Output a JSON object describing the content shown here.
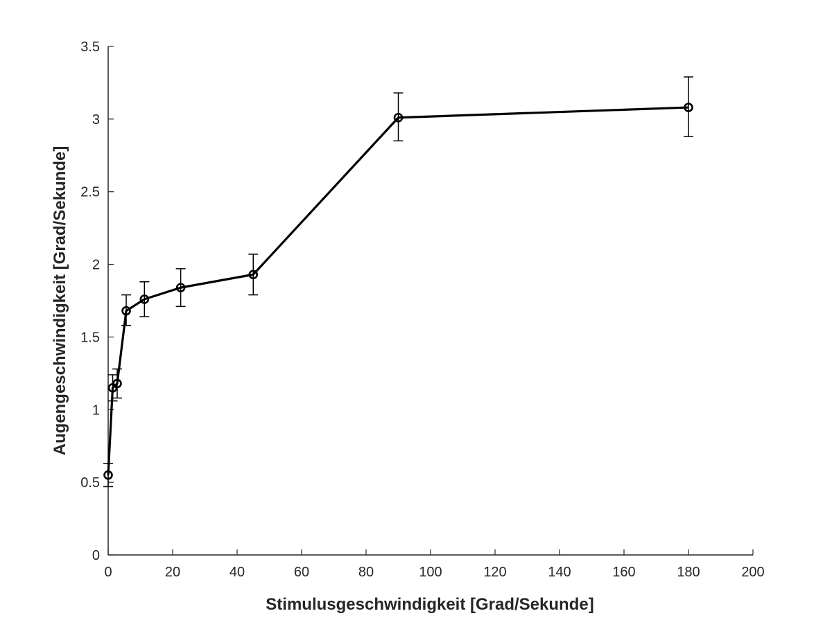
{
  "chart_data": {
    "type": "line",
    "title": "",
    "xlabel": "Stimulusgeschwindigkeit [Grad/Sekunde]",
    "ylabel": "Augengeschwindigkeit [Grad/Sekunde]",
    "xlim": [
      0,
      200
    ],
    "ylim": [
      0,
      3.5
    ],
    "xticks": [
      0,
      20,
      40,
      60,
      80,
      100,
      120,
      140,
      160,
      180,
      200
    ],
    "yticks": [
      0,
      0.5,
      1,
      1.5,
      2,
      2.5,
      3,
      3.5
    ],
    "xtick_labels": [
      "0",
      "20",
      "40",
      "60",
      "80",
      "100",
      "120",
      "140",
      "160",
      "180",
      "200"
    ],
    "ytick_labels": [
      "0",
      "0.5",
      "1",
      "1.5",
      "2",
      "2.5",
      "3",
      "3.5"
    ],
    "grid": false,
    "legend": "none",
    "line_color": "#000000",
    "series": [
      {
        "x": [
          0,
          1.4,
          2.8,
          5.6,
          11.25,
          22.5,
          45,
          90,
          180
        ],
        "y": [
          0.55,
          1.15,
          1.18,
          1.68,
          1.76,
          1.84,
          1.93,
          3.01,
          3.08
        ],
        "err_low": [
          0.47,
          1.06,
          1.08,
          1.58,
          1.64,
          1.71,
          1.79,
          2.85,
          2.88
        ],
        "err_high": [
          0.63,
          1.24,
          1.28,
          1.79,
          1.88,
          1.97,
          2.07,
          3.18,
          3.29
        ]
      }
    ]
  }
}
